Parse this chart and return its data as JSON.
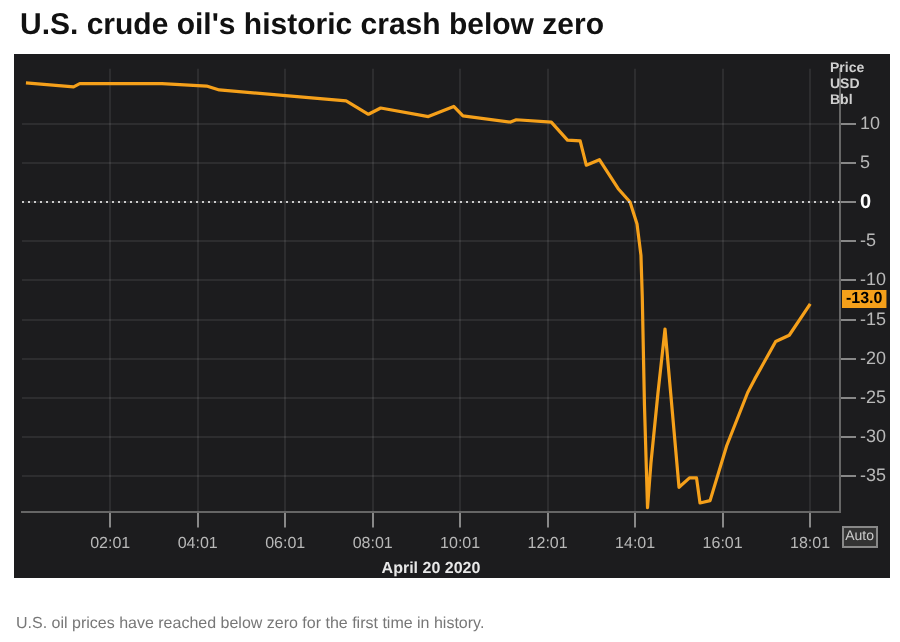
{
  "chart_data": {
    "type": "line",
    "title": "U.S. crude oil's historic crash below zero",
    "xlabel": "April 20 2020",
    "ylabel": "Price USD Bbl",
    "annotations": [
      "U.S. oil prices have reached below zero for the first time in history.",
      "Auto",
      "-13.0"
    ],
    "x": [
      0.09,
      1.18,
      1.32,
      3.2,
      4.22,
      4.51,
      5.96,
      7.41,
      7.92,
      8.2,
      9.29,
      9.87,
      10.08,
      11.17,
      11.3,
      12.1,
      12.47,
      12.76,
      12.9,
      13.2,
      13.63,
      13.9,
      14.06,
      14.15,
      14.18,
      14.23,
      14.3,
      14.38,
      14.54,
      14.7,
      15.02,
      15.26,
      15.42,
      15.5,
      15.73,
      16.11,
      16.59,
      16.75,
      17.23,
      17.54,
      18.02
    ],
    "series": [
      {
        "color": "#f5a01a",
        "values": [
          15.2,
          14.7,
          15.1,
          15.1,
          14.8,
          14.3,
          13.6,
          12.9,
          11.2,
          12.0,
          10.9,
          12.2,
          11.0,
          10.2,
          10.5,
          10.2,
          7.9,
          7.8,
          4.7,
          5.4,
          1.7,
          0,
          -2.8,
          -6.8,
          -12.1,
          -25.9,
          -39,
          -33.2,
          -24.3,
          -16.2,
          -36.4,
          -35.2,
          -35.2,
          -38.4,
          -38.1,
          -31.1,
          -24.3,
          -22.6,
          -17.8,
          -17.0,
          -13.0
        ]
      }
    ],
    "xlim": [
      0,
      18.7
    ],
    "ylim": [
      -39.5,
      17
    ],
    "xticks": [
      {
        "value": 2.0167,
        "label": "02:01"
      },
      {
        "value": 4.0167,
        "label": "04:01"
      },
      {
        "value": 6.0167,
        "label": "06:01"
      },
      {
        "value": 8.0167,
        "label": "08:01"
      },
      {
        "value": 10.0167,
        "label": "10:01"
      },
      {
        "value": 12.0167,
        "label": "12:01"
      },
      {
        "value": 14.0167,
        "label": "14:01"
      },
      {
        "value": 16.0167,
        "label": "16:01"
      },
      {
        "value": 18.0167,
        "label": "18:01"
      }
    ],
    "yticks": [
      10,
      5,
      0,
      -5,
      -10,
      -15,
      -20,
      -25,
      -30,
      -35
    ],
    "ref_lines": [
      {
        "axis": "y",
        "value": 0,
        "color": "#cccccc",
        "line_style": "dotted"
      }
    ],
    "grid": true,
    "legend": false,
    "marker": "none",
    "line_style": "solid"
  }
}
